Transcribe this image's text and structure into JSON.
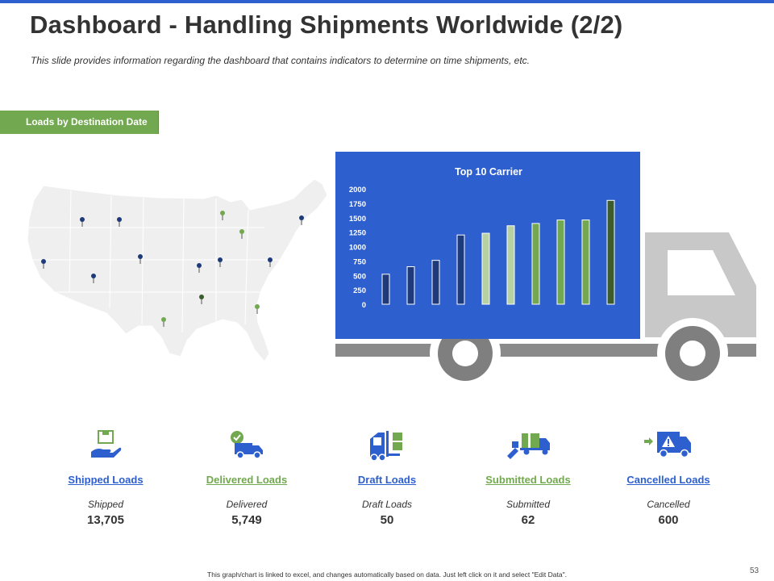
{
  "slide": {
    "title": "Dashboard - Handling Shipments Worldwide (2/2)",
    "subtitle": "This slide provides information regarding  the dashboard  that contains indicators to determine  on time shipments, etc.",
    "section_tag": "Loads by Destination Date",
    "footnote": "This graph/chart is linked to excel, and changes automatically based on data. Just left click on it and select \"Edit Data\".",
    "page_number": "53"
  },
  "colors": {
    "accent_blue": "#2e5fcf",
    "accent_green": "#72a84f",
    "dark_navy": "#1f3a7a",
    "dark_green": "#3d5c2c",
    "light_green": "#b7d1a3",
    "truck_gray": "#c8c8c8",
    "map_gray": "#efefef"
  },
  "map_pins": [
    {
      "color": "dark_navy"
    },
    {
      "color": "dark_navy"
    },
    {
      "color": "dark_navy"
    },
    {
      "color": "dark_navy"
    },
    {
      "color": "dark_navy"
    },
    {
      "color": "dark_navy"
    },
    {
      "color": "dark_navy"
    },
    {
      "color": "dark_navy"
    },
    {
      "color": "dark_navy"
    },
    {
      "color": "accent_green"
    },
    {
      "color": "accent_green"
    },
    {
      "color": "dark_green"
    },
    {
      "color": "accent_green"
    },
    {
      "color": "accent_green"
    }
  ],
  "chart_data": {
    "type": "bar",
    "title": "Top 10 Carrier",
    "xlabel": "",
    "ylabel": "",
    "ylim": [
      0,
      2000
    ],
    "yticks": [
      "0",
      "250",
      "500",
      "750",
      "1000",
      "1250",
      "1500",
      "1750",
      "2000"
    ],
    "grid": false,
    "categories": [
      "",
      "",
      "",
      "",
      "",
      "",
      "",
      "",
      "",
      ""
    ],
    "values": [
      520,
      650,
      760,
      1200,
      1230,
      1360,
      1400,
      1460,
      1460,
      1800
    ],
    "bar_colors": [
      "dark_navy",
      "dark_navy",
      "dark_navy",
      "dark_navy",
      "light_green",
      "light_green",
      "accent_green",
      "accent_green",
      "accent_green",
      "dark_green"
    ]
  },
  "kpis": [
    {
      "link": "Shipped Loads",
      "label": "Shipped",
      "value": "13,705",
      "icon": "hand-box-icon",
      "tone": "blue"
    },
    {
      "link": "Delivered Loads",
      "label": "Delivered",
      "value": "5,749",
      "icon": "delivery-truck-check-icon",
      "tone": "green"
    },
    {
      "link": "Draft Loads",
      "label": "Draft Loads",
      "value": "50",
      "icon": "forklift-icon",
      "tone": "blue"
    },
    {
      "link": "Submitted Loads",
      "label": "Submitted",
      "value": "62",
      "icon": "loading-truck-icon",
      "tone": "green"
    },
    {
      "link": "Cancelled Loads",
      "label": "Cancelled",
      "value": "600",
      "icon": "warning-truck-icon",
      "tone": "blue"
    }
  ]
}
